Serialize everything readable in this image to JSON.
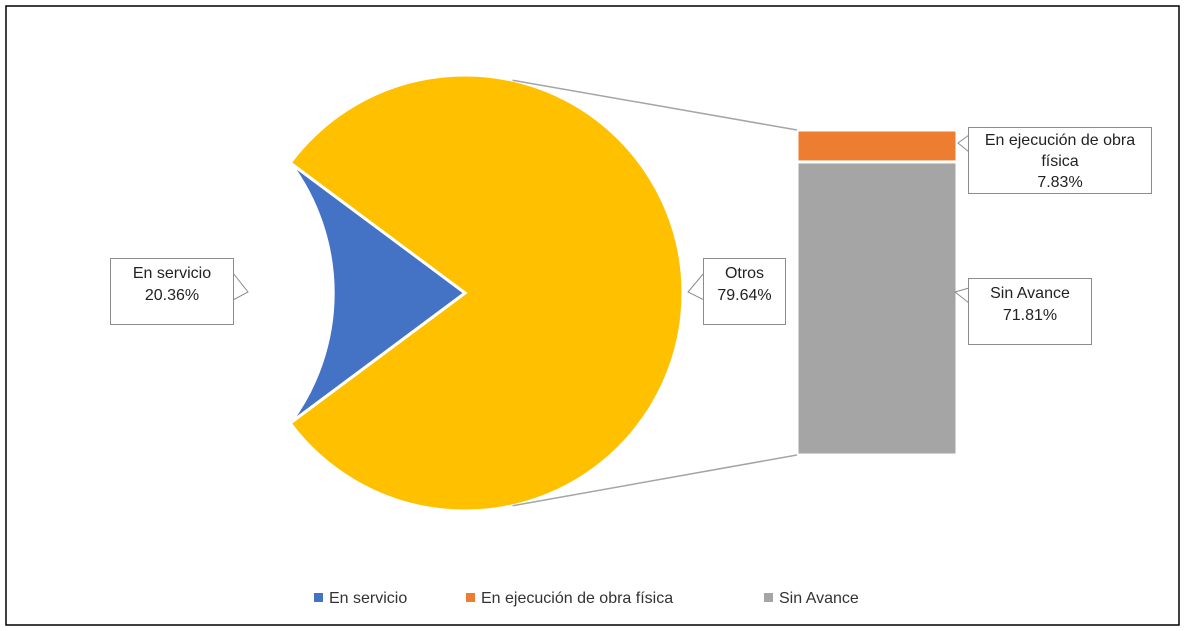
{
  "chart_data": {
    "type": "bar-of-pie",
    "categories": [
      "En servicio",
      "En ejecución de obra física",
      "Sin Avance"
    ],
    "values": [
      20.36,
      7.83,
      71.81
    ],
    "value_labels": [
      "20.36%",
      "7.83%",
      "71.81%"
    ],
    "colors": [
      "#4472c4",
      "#ed7d31",
      "#a5a5a5"
    ],
    "other_label": "Otros",
    "other_value": 79.64,
    "other_value_label": "79.64%",
    "other_color": "#ffc000"
  }
}
